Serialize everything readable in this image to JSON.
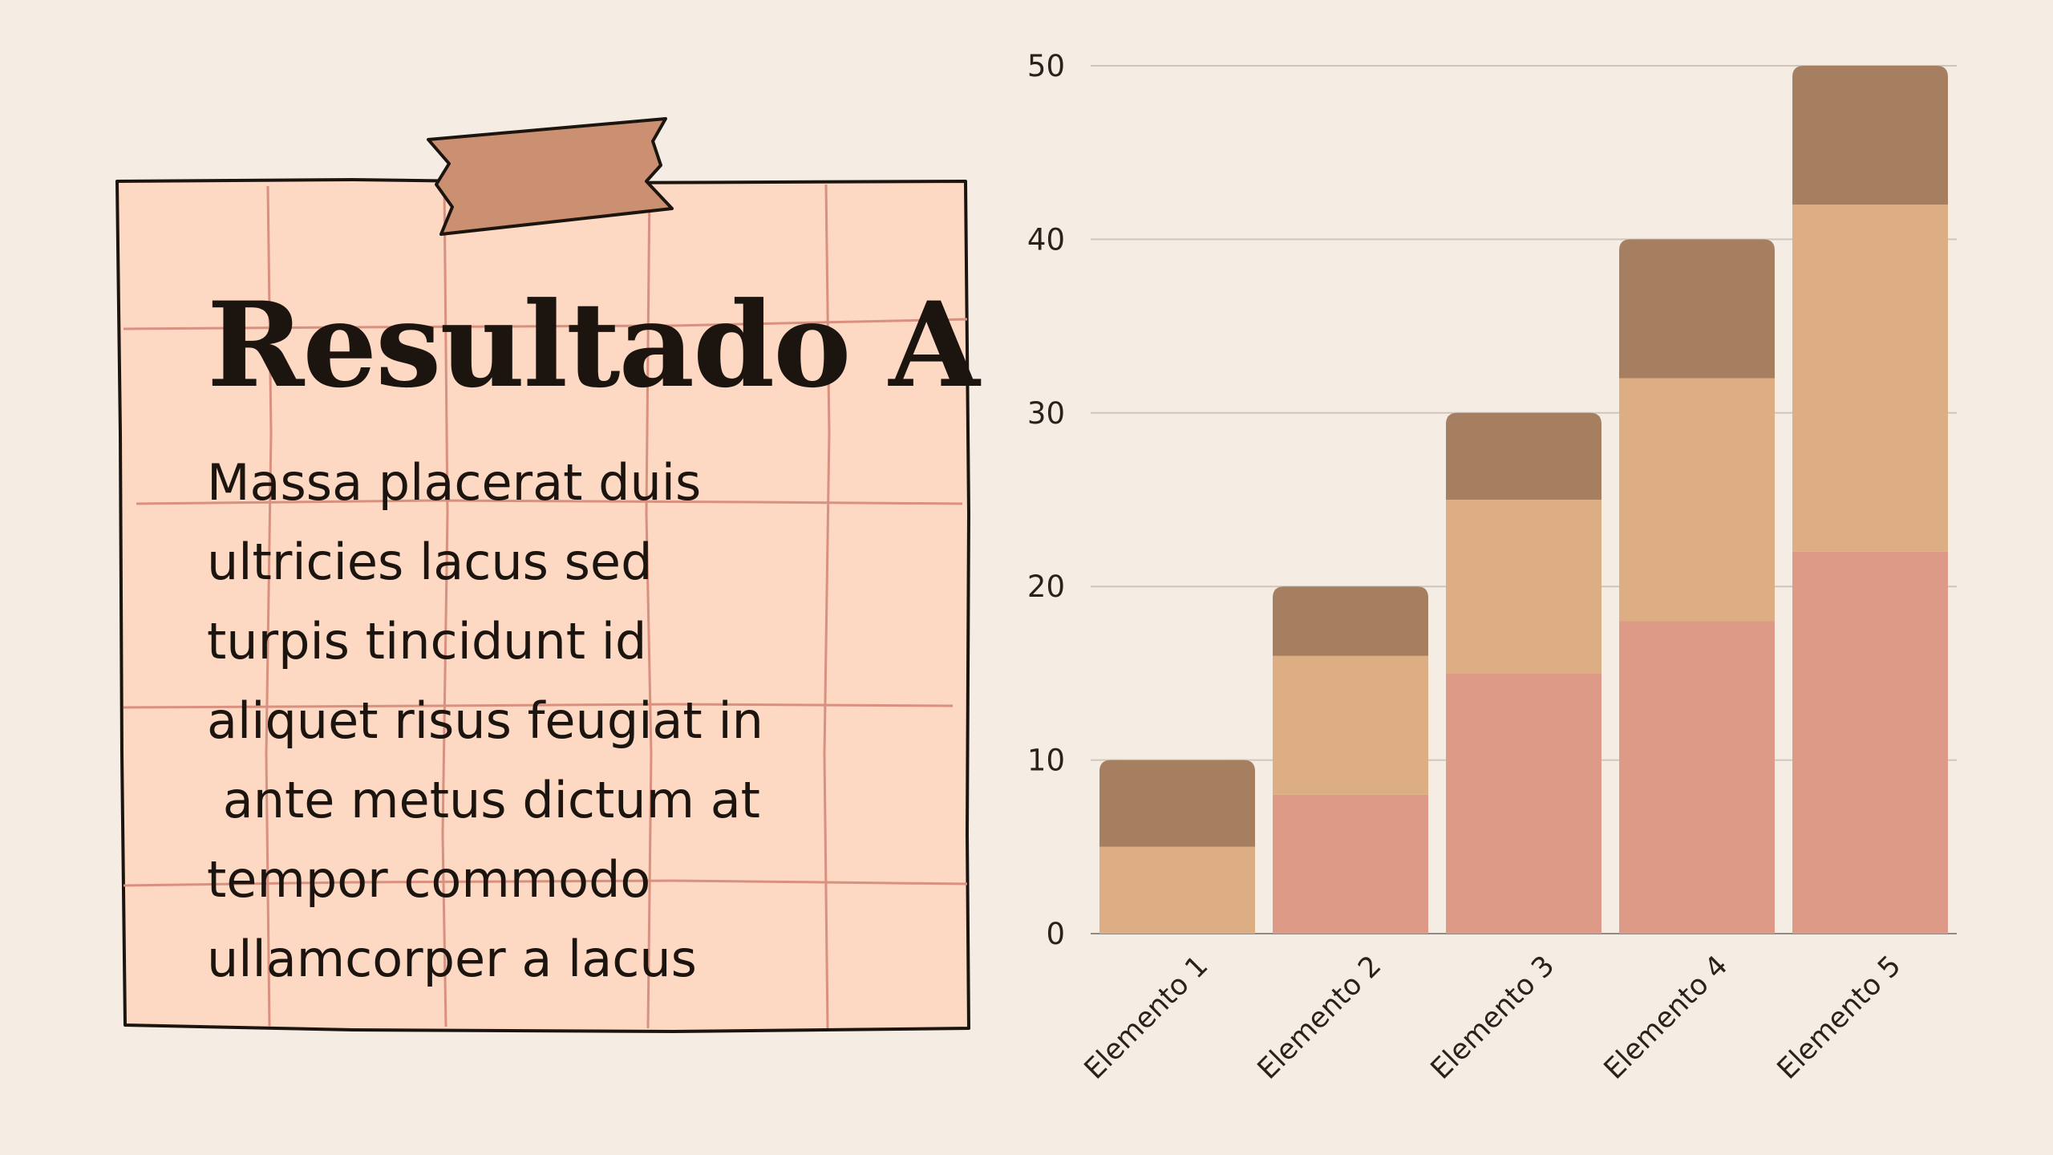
{
  "note": {
    "title": "Resultado A",
    "body_lines": [
      "Massa placerat duis",
      "ultricies lacus sed",
      "turpis tincidunt id",
      "aliquet risus feugiat in",
      " ante metus dictum at",
      "tempor commodo",
      "ullamcorper a lacus"
    ],
    "colors": {
      "paper": "#fdd8c3",
      "grid": "#d9907f",
      "outline": "#1b140f",
      "tape": "#cb8f71"
    }
  },
  "chart_data": {
    "type": "bar",
    "stacked": true,
    "categories": [
      "Elemento 1",
      "Elemento 2",
      "Elemento 3",
      "Elemento 4",
      "Elemento 5"
    ],
    "series": [
      {
        "values": [
          0,
          8,
          15,
          18,
          22
        ],
        "color": "#dd9a86"
      },
      {
        "values": [
          5,
          8,
          10,
          14,
          20
        ],
        "color": "#ddae83"
      },
      {
        "values": [
          5,
          4,
          5,
          8,
          8
        ],
        "color": "#a67f60"
      }
    ],
    "ylim": [
      0,
      50
    ],
    "yticks": [
      0,
      10,
      20,
      30,
      40,
      50
    ],
    "grid": true,
    "legend": "none"
  }
}
